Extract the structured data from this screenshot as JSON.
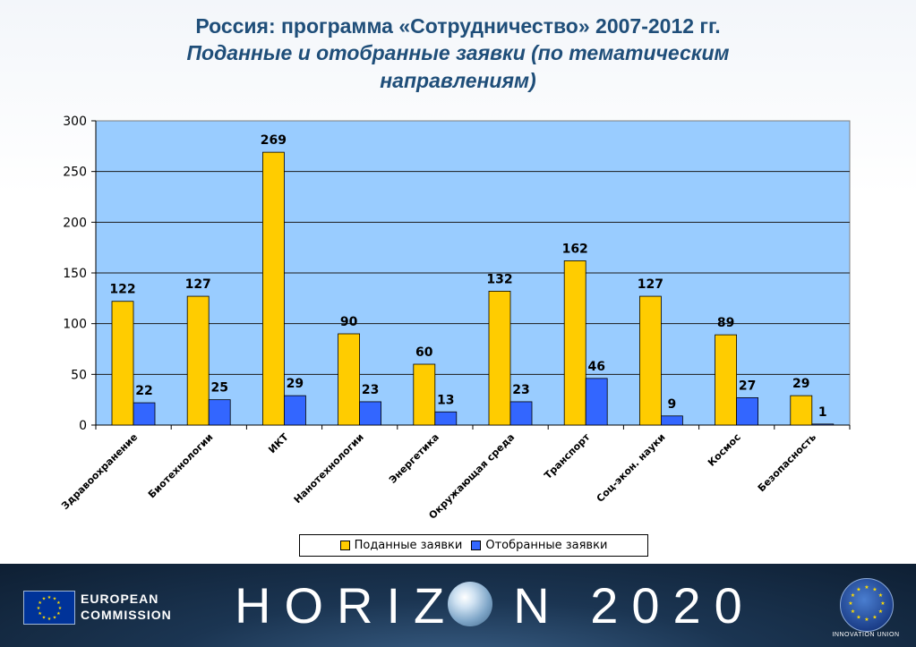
{
  "title": "Россия: программа «Сотрудничество» 2007-2012 гг.",
  "subtitle_line1": "Поданные и отобранные заявки (по тематическим",
  "subtitle_line2": "направлениям)",
  "chart_data": {
    "type": "bar",
    "categories": [
      "Здравоохранение",
      "Биотехнологии",
      "ИКТ",
      "Нанотехнологии",
      "Энергетика",
      "Окружающая среда",
      "Транспорт",
      "Соц-экон. науки",
      "Космос",
      "Безопасность"
    ],
    "series": [
      {
        "name": "Поданные заявки",
        "values": [
          122,
          127,
          269,
          90,
          60,
          132,
          162,
          127,
          89,
          29
        ],
        "color": "#ffcc00"
      },
      {
        "name": "Отобранные заявки",
        "values": [
          22,
          25,
          29,
          23,
          13,
          23,
          46,
          9,
          27,
          1
        ],
        "color": "#3366ff"
      }
    ],
    "ylim": [
      0,
      300
    ],
    "yticks": [
      0,
      50,
      100,
      150,
      200,
      250,
      300
    ],
    "grid": true,
    "plot_background": "#99ccff",
    "legend_position": "bottom"
  },
  "footer": {
    "ec_line1": "EUROPEAN",
    "ec_line2": "COMMISSION",
    "horizon_left": "HORIZ",
    "horizon_right": "N 2020",
    "badge_text": "INNOVATION UNION",
    "background": "#1b3552"
  }
}
